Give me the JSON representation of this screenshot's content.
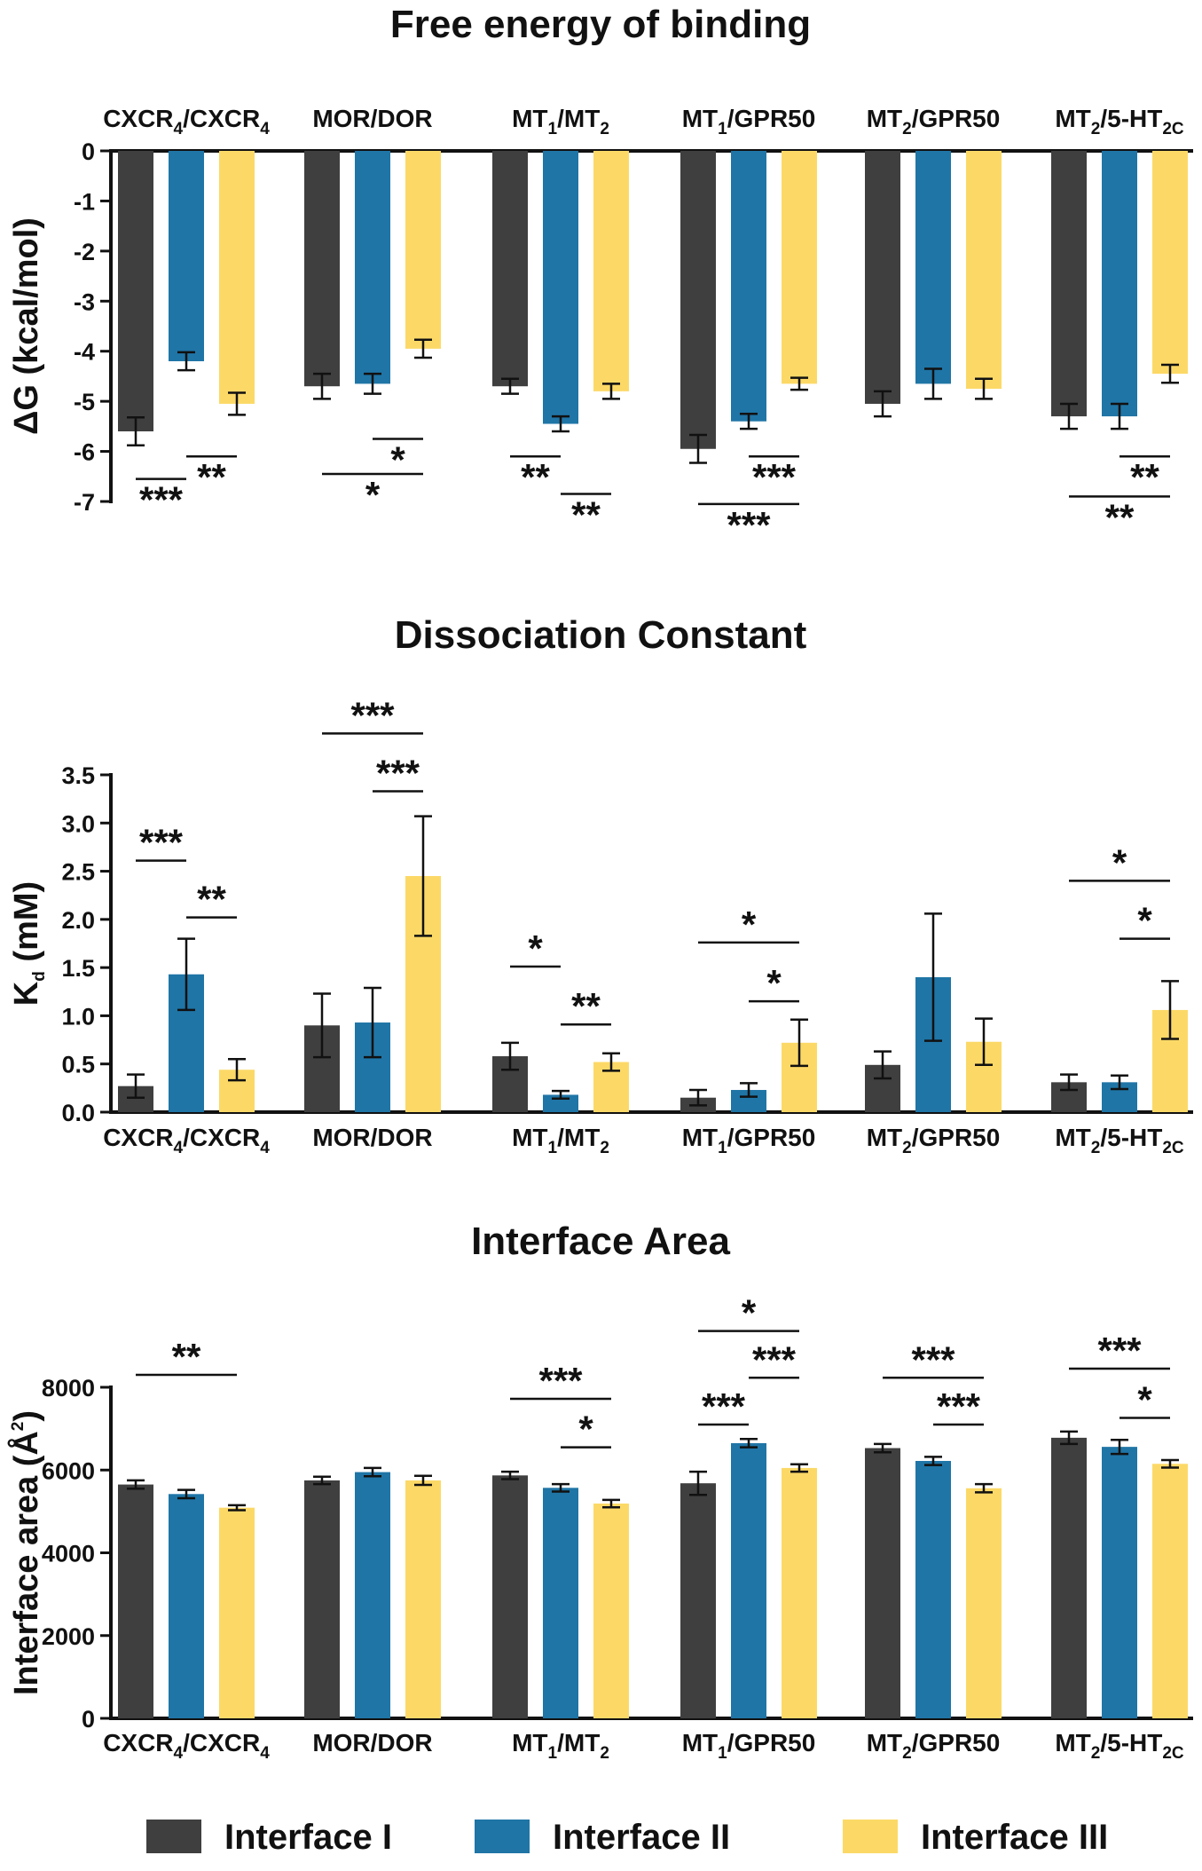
{
  "chart_data": [
    {
      "type": "bar",
      "title": "Free energy of binding",
      "ylabel": "ΔG (kcal/mol)",
      "xlabel": "",
      "ylim": [
        -7,
        0
      ],
      "yticks": [
        0,
        -1,
        -2,
        -3,
        -4,
        -5,
        -6,
        -7
      ],
      "category_position": "top",
      "categories": [
        {
          "base": "CXCR",
          "parts": [
            [
              "CXCR",
              ""
            ],
            [
              "4",
              "sub"
            ],
            [
              "/CXCR",
              ""
            ],
            [
              "4",
              "sub"
            ]
          ]
        },
        {
          "base": "MOR/DOR",
          "parts": [
            [
              "MOR/DOR",
              ""
            ]
          ]
        },
        {
          "base": "MT/MT",
          "parts": [
            [
              "MT",
              ""
            ],
            [
              "1",
              "sub"
            ],
            [
              "/MT",
              ""
            ],
            [
              "2",
              "sub"
            ]
          ]
        },
        {
          "base": "MT/GPR50",
          "parts": [
            [
              "MT",
              ""
            ],
            [
              "1",
              "sub"
            ],
            [
              "/GPR50",
              ""
            ]
          ]
        },
        {
          "base": "MT/GPR50",
          "parts": [
            [
              "MT",
              ""
            ],
            [
              "2",
              "sub"
            ],
            [
              "/GPR50",
              ""
            ]
          ]
        },
        {
          "base": "MT/5-HT",
          "parts": [
            [
              "MT",
              ""
            ],
            [
              "2",
              "sub"
            ],
            [
              "/5-HT",
              ""
            ],
            [
              "2C",
              "sub"
            ]
          ]
        }
      ],
      "series": [
        {
          "name": "Interface I",
          "values": [
            -5.6,
            -4.7,
            -4.7,
            -5.95,
            -5.05,
            -5.3
          ],
          "errors": [
            0.28,
            0.25,
            0.15,
            0.28,
            0.25,
            0.25
          ]
        },
        {
          "name": "Interface II",
          "values": [
            -4.2,
            -4.65,
            -5.45,
            -5.4,
            -4.65,
            -5.3
          ],
          "errors": [
            0.18,
            0.2,
            0.15,
            0.15,
            0.3,
            0.25
          ]
        },
        {
          "name": "Interface III",
          "values": [
            -5.05,
            -3.95,
            -4.8,
            -4.65,
            -4.75,
            -4.45
          ],
          "errors": [
            0.22,
            0.18,
            0.15,
            0.12,
            0.2,
            0.18
          ]
        }
      ],
      "significance": [
        {
          "group": 0,
          "from": 0,
          "to": 1,
          "label": "***",
          "y": -6.55
        },
        {
          "group": 0,
          "from": 1,
          "to": 2,
          "label": "**",
          "y": -6.1
        },
        {
          "group": 1,
          "from": 1,
          "to": 2,
          "label": "*",
          "y": -5.75
        },
        {
          "group": 1,
          "from": 0,
          "to": 2,
          "label": "*",
          "y": -6.45
        },
        {
          "group": 2,
          "from": 0,
          "to": 1,
          "label": "**",
          "y": -6.1
        },
        {
          "group": 2,
          "from": 1,
          "to": 2,
          "label": "**",
          "y": -6.85
        },
        {
          "group": 3,
          "from": 1,
          "to": 2,
          "label": "***",
          "y": -6.1
        },
        {
          "group": 3,
          "from": 0,
          "to": 2,
          "label": "***",
          "y": -7.05
        },
        {
          "group": 5,
          "from": 1,
          "to": 2,
          "label": "**",
          "y": -6.1
        },
        {
          "group": 5,
          "from": 0,
          "to": 2,
          "label": "**",
          "y": -6.9
        }
      ]
    },
    {
      "type": "bar",
      "title": "Dissociation Constant",
      "ylabel": "K",
      "ylabel_sub": "d",
      "ylabel_suffix": " (mM)",
      "xlabel": "",
      "ylim": [
        0,
        3.5
      ],
      "yticks": [
        0.0,
        0.5,
        1.0,
        1.5,
        2.0,
        2.5,
        3.0,
        3.5
      ],
      "ytick_labels": [
        "0.0",
        "0.5",
        "1.0",
        "1.5",
        "2.0",
        "2.5",
        "3.0",
        "3.5"
      ],
      "category_position": "bottom",
      "categories": [
        {
          "base": "CXCR",
          "parts": [
            [
              "CXCR",
              ""
            ],
            [
              "4",
              "sub"
            ],
            [
              "/CXCR",
              ""
            ],
            [
              "4",
              "sub"
            ]
          ]
        },
        {
          "base": "MOR/DOR",
          "parts": [
            [
              "MOR/DOR",
              ""
            ]
          ]
        },
        {
          "base": "MT/MT",
          "parts": [
            [
              "MT",
              ""
            ],
            [
              "1",
              "sub"
            ],
            [
              "/MT",
              ""
            ],
            [
              "2",
              "sub"
            ]
          ]
        },
        {
          "base": "MT/GPR50",
          "parts": [
            [
              "MT",
              ""
            ],
            [
              "1",
              "sub"
            ],
            [
              "/GPR50",
              ""
            ]
          ]
        },
        {
          "base": "MT/GPR50",
          "parts": [
            [
              "MT",
              ""
            ],
            [
              "2",
              "sub"
            ],
            [
              "/GPR50",
              ""
            ]
          ]
        },
        {
          "base": "MT/5-HT",
          "parts": [
            [
              "MT",
              ""
            ],
            [
              "2",
              "sub"
            ],
            [
              "/5-HT",
              ""
            ],
            [
              "2C",
              "sub"
            ]
          ]
        }
      ],
      "series": [
        {
          "name": "Interface I",
          "values": [
            0.27,
            0.9,
            0.58,
            0.15,
            0.49,
            0.31
          ],
          "errors": [
            0.12,
            0.33,
            0.14,
            0.08,
            0.14,
            0.08
          ]
        },
        {
          "name": "Interface II",
          "values": [
            1.43,
            0.93,
            0.18,
            0.23,
            1.4,
            0.31
          ],
          "errors": [
            0.37,
            0.36,
            0.04,
            0.07,
            0.66,
            0.07
          ]
        },
        {
          "name": "Interface III",
          "values": [
            0.44,
            2.45,
            0.52,
            0.72,
            0.73,
            1.06
          ],
          "errors": [
            0.11,
            0.62,
            0.09,
            0.24,
            0.24,
            0.3
          ]
        }
      ],
      "significance": [
        {
          "group": 0,
          "from": 0,
          "to": 1,
          "label": "***",
          "y": 2.61
        },
        {
          "group": 0,
          "from": 1,
          "to": 2,
          "label": "**",
          "y": 2.02
        },
        {
          "group": 1,
          "from": 0,
          "to": 2,
          "label": "***",
          "y": 3.93
        },
        {
          "group": 1,
          "from": 1,
          "to": 2,
          "label": "***",
          "y": 3.33
        },
        {
          "group": 2,
          "from": 0,
          "to": 1,
          "label": "*",
          "y": 1.51
        },
        {
          "group": 2,
          "from": 1,
          "to": 2,
          "label": "**",
          "y": 0.91
        },
        {
          "group": 3,
          "from": 0,
          "to": 2,
          "label": "*",
          "y": 1.76
        },
        {
          "group": 3,
          "from": 1,
          "to": 2,
          "label": "*",
          "y": 1.15
        },
        {
          "group": 5,
          "from": 0,
          "to": 2,
          "label": "*",
          "y": 2.4
        },
        {
          "group": 5,
          "from": 1,
          "to": 2,
          "label": "*",
          "y": 1.8
        }
      ]
    },
    {
      "type": "bar",
      "title": "Interface Area",
      "ylabel": "Interface area  (Å",
      "ylabel_sup": "2",
      "ylabel_suffix": ")",
      "xlabel": "",
      "ylim": [
        0,
        8000
      ],
      "yticks": [
        0,
        2000,
        4000,
        6000,
        8000
      ],
      "ytick_labels": [
        "0",
        "2000",
        "4000",
        "6000",
        "8000"
      ],
      "category_position": "bottom",
      "categories": [
        {
          "base": "CXCR",
          "parts": [
            [
              "CXCR",
              ""
            ],
            [
              "4",
              "sub"
            ],
            [
              "/CXCR",
              ""
            ],
            [
              "4",
              "sub"
            ]
          ]
        },
        {
          "base": "MOR/DOR",
          "parts": [
            [
              "MOR/DOR",
              ""
            ]
          ]
        },
        {
          "base": "MT/MT",
          "parts": [
            [
              "MT",
              ""
            ],
            [
              "1",
              "sub"
            ],
            [
              "/MT",
              ""
            ],
            [
              "2",
              "sub"
            ]
          ]
        },
        {
          "base": "MT/GPR50",
          "parts": [
            [
              "MT",
              ""
            ],
            [
              "1",
              "sub"
            ],
            [
              "/GPR50",
              ""
            ]
          ]
        },
        {
          "base": "MT/GPR50",
          "parts": [
            [
              "MT",
              ""
            ],
            [
              "2",
              "sub"
            ],
            [
              "/GPR50",
              ""
            ]
          ]
        },
        {
          "base": "MT/5-HT",
          "parts": [
            [
              "MT",
              ""
            ],
            [
              "2",
              "sub"
            ],
            [
              "/5-HT",
              ""
            ],
            [
              "2C",
              "sub"
            ]
          ]
        }
      ],
      "series": [
        {
          "name": "Interface I",
          "values": [
            5650,
            5750,
            5870,
            5680,
            6530,
            6780
          ],
          "errors": [
            100,
            90,
            90,
            280,
            100,
            150
          ]
        },
        {
          "name": "Interface II",
          "values": [
            5420,
            5950,
            5570,
            6650,
            6220,
            6560
          ],
          "errors": [
            100,
            100,
            90,
            100,
            100,
            170
          ]
        },
        {
          "name": "Interface III",
          "values": [
            5090,
            5750,
            5190,
            6050,
            5560,
            6150
          ],
          "errors": [
            60,
            110,
            90,
            90,
            100,
            90
          ]
        }
      ],
      "significance": [
        {
          "group": 0,
          "from": 0,
          "to": 2,
          "label": "**",
          "y": 8300
        },
        {
          "group": 2,
          "from": 0,
          "to": 2,
          "label": "***",
          "y": 7720
        },
        {
          "group": 2,
          "from": 1,
          "to": 2,
          "label": "*",
          "y": 6550
        },
        {
          "group": 3,
          "from": 0,
          "to": 1,
          "label": "***",
          "y": 7100
        },
        {
          "group": 3,
          "from": 1,
          "to": 2,
          "label": "***",
          "y": 8230
        },
        {
          "group": 3,
          "from": 0,
          "to": 2,
          "label": "*",
          "y": 9360
        },
        {
          "group": 4,
          "from": 0,
          "to": 2,
          "label": "***",
          "y": 8230
        },
        {
          "group": 4,
          "from": 1,
          "to": 2,
          "label": "***",
          "y": 7100
        },
        {
          "group": 5,
          "from": 0,
          "to": 2,
          "label": "***",
          "y": 8450
        },
        {
          "group": 5,
          "from": 1,
          "to": 2,
          "label": "*",
          "y": 7260
        }
      ]
    }
  ],
  "legend": {
    "placement": "bottom",
    "items": [
      {
        "label": "Interface I",
        "color": "#3f3f3f"
      },
      {
        "label": "Interface II",
        "color": "#1f75a6"
      },
      {
        "label": "Interface III",
        "color": "#fcd967"
      }
    ]
  }
}
